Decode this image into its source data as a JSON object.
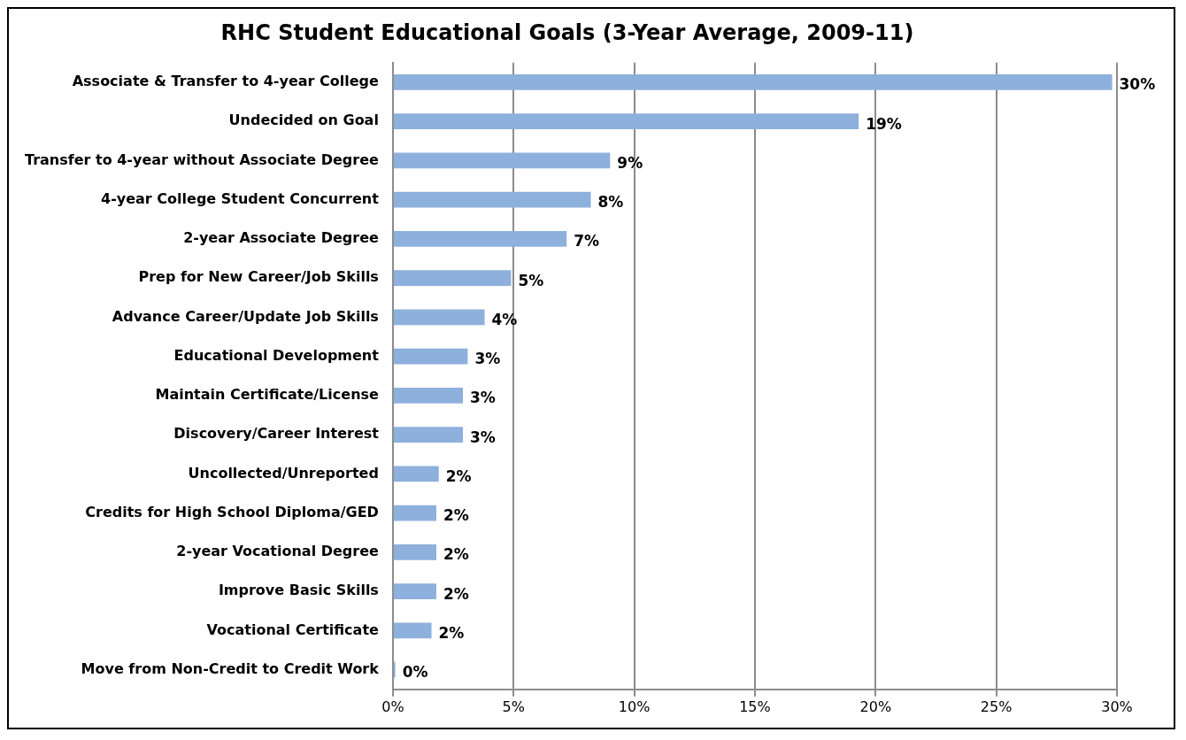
{
  "chart_data": {
    "type": "bar",
    "orientation": "horizontal",
    "title": "RHC Student Educational Goals (3-Year Average, 2009-11)",
    "categories": [
      "Associate & Transfer to 4-year College",
      "Undecided on Goal",
      "Transfer to 4-year without Associate Degree",
      "4-year College Student Concurrent",
      "2-year Associate Degree",
      "Prep for New Career/Job Skills",
      "Advance Career/Update Job Skills",
      "Educational Development",
      "Maintain Certificate/License",
      "Discovery/Career Interest",
      "Uncollected/Unreported",
      "Credits for High School Diploma/GED",
      "2-year Vocational Degree",
      "Improve Basic Skills",
      "Vocational Certificate",
      "Move from Non-Credit to Credit Work"
    ],
    "values": [
      29.8,
      19.3,
      9.0,
      8.2,
      7.2,
      4.9,
      3.8,
      3.1,
      2.9,
      2.9,
      1.9,
      1.8,
      1.8,
      1.8,
      1.6,
      0.1
    ],
    "value_labels": [
      "30%",
      "19%",
      "9%",
      "8%",
      "7%",
      "5%",
      "4%",
      "3%",
      "3%",
      "3%",
      "2%",
      "2%",
      "2%",
      "2%",
      "2%",
      "0%"
    ],
    "color": "#8eb0dc",
    "xlim": [
      0,
      30
    ],
    "xticks": [
      {
        "value": 0,
        "label": "0%"
      },
      {
        "value": 5,
        "label": "5%"
      },
      {
        "value": 10,
        "label": "10%"
      },
      {
        "value": 15,
        "label": "15%"
      },
      {
        "value": 20,
        "label": "20%"
      },
      {
        "value": 25,
        "label": "25%"
      },
      {
        "value": 30,
        "label": "30%"
      }
    ],
    "grid": "x"
  }
}
